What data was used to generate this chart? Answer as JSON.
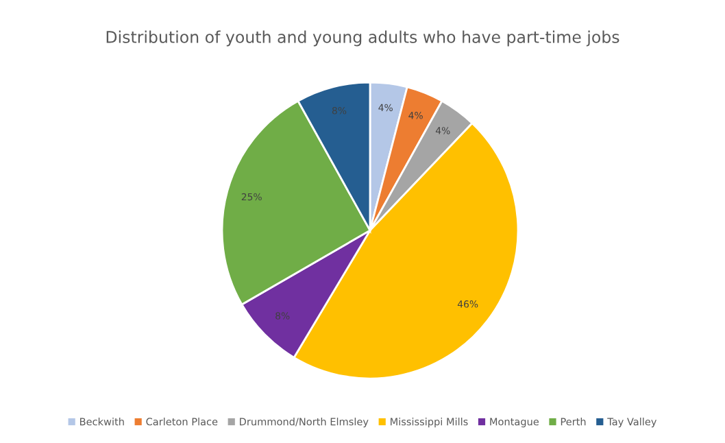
{
  "chart_data": {
    "type": "pie",
    "title": "Distribution of youth and young adults who have part-time jobs",
    "categories": [
      "Beckwith",
      "Carleton Place",
      "Drummond/North Elmsley",
      "Mississippi Mills",
      "Montague",
      "Perth",
      "Tay Valley"
    ],
    "values": [
      4,
      4,
      4,
      46,
      8,
      25,
      8
    ],
    "colors": [
      "#b4c7e7",
      "#ed7d31",
      "#a5a5a5",
      "#ffc000",
      "#7030a0",
      "#70ad47",
      "#255e91"
    ],
    "value_labels": [
      "4%",
      "4%",
      "4%",
      "46%",
      "8%",
      "25%",
      "8%"
    ],
    "legend": "bottom"
  }
}
